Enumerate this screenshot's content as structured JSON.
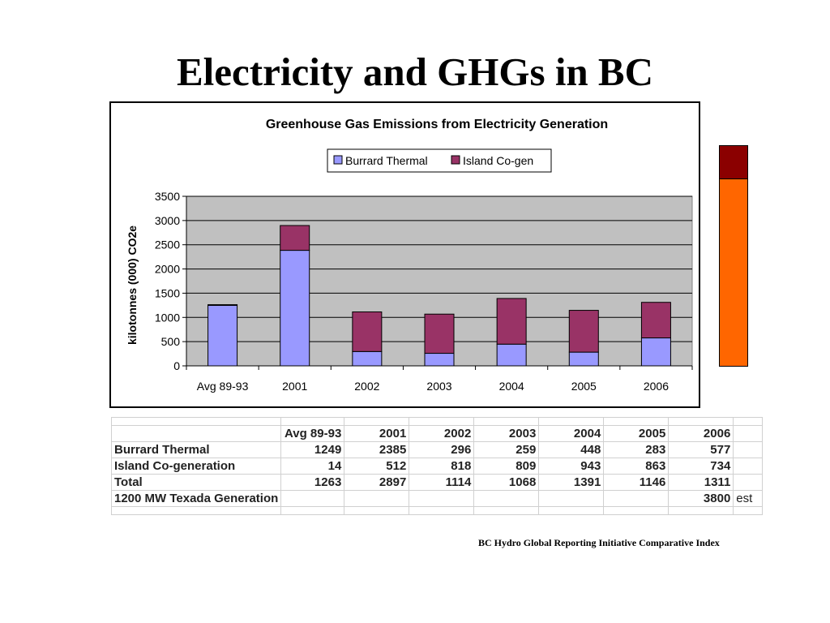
{
  "slide": {
    "title": "Electricity and GHGs in BC",
    "source": "BC Hydro Global Reporting Initiative Comparative Index"
  },
  "colors": {
    "burrard": "#9999ff",
    "island": "#993366",
    "plot_bg": "#c0c0c0",
    "side_top": "#8b0000",
    "side_bottom": "#ff6600"
  },
  "chart_data": {
    "type": "bar",
    "stacked": true,
    "title": "Greenhouse Gas Emissions from Electricity Generation",
    "xlabel": "",
    "ylabel": "kilotonnes (000) CO2e",
    "ylim": [
      0,
      3500
    ],
    "yticks": [
      "0",
      "500",
      "1000",
      "1500",
      "2000",
      "2500",
      "3000",
      "3500"
    ],
    "categories": [
      "Avg 89-93",
      "2001",
      "2002",
      "2003",
      "2004",
      "2005",
      "2006"
    ],
    "series": [
      {
        "name": "Burrard Thermal",
        "color": "#9999ff",
        "values": [
          1249,
          2385,
          296,
          259,
          448,
          283,
          577
        ]
      },
      {
        "name": "Island Co-gen",
        "color": "#993366",
        "values": [
          14,
          512,
          818,
          809,
          943,
          863,
          734
        ]
      }
    ],
    "grid": true,
    "legend": "top-center"
  },
  "table": {
    "headers": [
      "",
      "Avg 89-93",
      "2001",
      "2002",
      "2003",
      "2004",
      "2005",
      "2006",
      ""
    ],
    "rows": [
      {
        "label": "Burrard Thermal",
        "values": [
          "1249",
          "2385",
          "296",
          "259",
          "448",
          "283",
          "577"
        ],
        "extra": ""
      },
      {
        "label": "Island Co-generation",
        "values": [
          "14",
          "512",
          "818",
          "809",
          "943",
          "863",
          "734"
        ],
        "extra": ""
      },
      {
        "label": "Total",
        "values": [
          "1263",
          "2897",
          "1114",
          "1068",
          "1391",
          "1146",
          "1311"
        ],
        "extra": ""
      },
      {
        "label": "1200 MW Texada Generation",
        "values": [
          "",
          "",
          "",
          "",
          "",
          "",
          "3800"
        ],
        "extra": "est"
      }
    ]
  }
}
